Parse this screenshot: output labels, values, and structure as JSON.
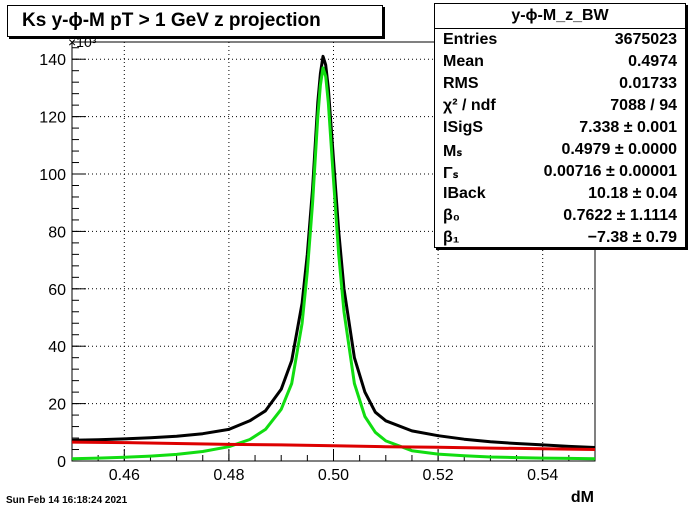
{
  "title": "Ks y-ϕ-M pT > 1 GeV z projection",
  "date": "Sun Feb 14 16:18:24 2021",
  "stats": {
    "name": "y-ϕ-M_z_BW",
    "rows": [
      {
        "key": "Entries",
        "value": "3675023"
      },
      {
        "key": "Mean",
        "value": "0.4974"
      },
      {
        "key": "RMS",
        "value": "0.01733"
      },
      {
        "key": "χ² / ndf",
        "value": "7088 / 94"
      },
      {
        "key": "ISigS",
        "value": "7.338 ± 0.001"
      },
      {
        "key": "Mₛ",
        "value": "0.4979 ± 0.0000"
      },
      {
        "key": "Γₛ",
        "value": "0.00716 ± 0.00001"
      },
      {
        "key": "IBack",
        "value": "10.18 ± 0.04"
      },
      {
        "key": "β₀",
        "value": "0.7622 ± 1.1114"
      },
      {
        "key": "β₁",
        "value": "−7.38 ± 0.79"
      }
    ]
  },
  "chart_data": {
    "type": "line",
    "xlabel": "dM",
    "ylabel": "",
    "y_multiplier": "×10³",
    "xlim": [
      0.45,
      0.55
    ],
    "ylim": [
      0,
      146
    ],
    "x_ticks": [
      0.46,
      0.48,
      0.5,
      0.52,
      0.54
    ],
    "y_ticks": [
      0,
      20,
      40,
      60,
      80,
      100,
      120,
      140
    ],
    "grid": true,
    "series": [
      {
        "color": "#000000",
        "x": [
          0.45,
          0.455,
          0.46,
          0.465,
          0.47,
          0.475,
          0.48,
          0.484,
          0.487,
          0.49,
          0.492,
          0.494,
          0.495,
          0.496,
          0.497,
          0.4975,
          0.498,
          0.4985,
          0.499,
          0.5,
          0.501,
          0.502,
          0.504,
          0.506,
          0.508,
          0.51,
          0.515,
          0.52,
          0.525,
          0.53,
          0.535,
          0.54,
          0.545,
          0.55
        ],
        "y": [
          7.2,
          7.4,
          7.7,
          8.1,
          8.6,
          9.5,
          11,
          14,
          17.5,
          25,
          35,
          55,
          72,
          95,
          125,
          135,
          141,
          138,
          130,
          105,
          80,
          60,
          36,
          24,
          17,
          14,
          10.5,
          8.8,
          7.6,
          6.7,
          6.1,
          5.6,
          5.1,
          4.7
        ]
      },
      {
        "color": "#11dd11",
        "x": [
          0.45,
          0.455,
          0.46,
          0.465,
          0.47,
          0.475,
          0.48,
          0.484,
          0.487,
          0.49,
          0.492,
          0.494,
          0.495,
          0.496,
          0.497,
          0.4975,
          0.498,
          0.4985,
          0.499,
          0.5,
          0.501,
          0.502,
          0.504,
          0.506,
          0.508,
          0.51,
          0.515,
          0.52,
          0.525,
          0.53,
          0.535,
          0.54,
          0.545,
          0.55
        ],
        "y": [
          0.8,
          1.0,
          1.3,
          1.7,
          2.3,
          3.3,
          5,
          7.5,
          11,
          18,
          27,
          48,
          66,
          90,
          120,
          131,
          137,
          134,
          125,
          98,
          72,
          52,
          27,
          15.5,
          10,
          7,
          3.6,
          2.4,
          1.8,
          1.4,
          1.2,
          1.0,
          0.9,
          0.8
        ]
      },
      {
        "color": "#dd0000",
        "x": [
          0.45,
          0.46,
          0.47,
          0.48,
          0.49,
          0.5,
          0.51,
          0.52,
          0.53,
          0.54,
          0.55
        ],
        "y": [
          6.6,
          6.4,
          6.1,
          5.8,
          5.6,
          5.3,
          5.0,
          4.8,
          4.5,
          4.3,
          4.0
        ]
      }
    ]
  }
}
